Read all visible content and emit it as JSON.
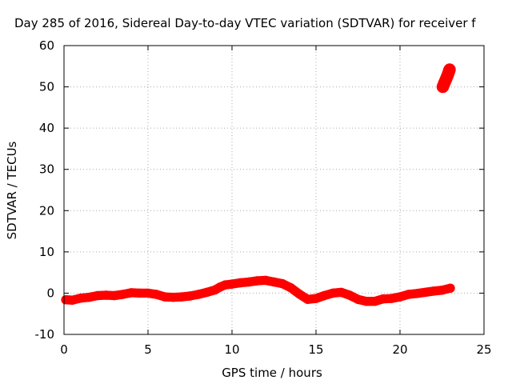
{
  "chart_data": {
    "type": "scatter",
    "title": "Day 285 of 2016, Sidereal Day-to-day VTEC variation (SDTVAR) for receiver f",
    "xlabel": "GPS time / hours",
    "ylabel": "SDTVAR / TECUs",
    "xlim": [
      0,
      25
    ],
    "ylim": [
      -10,
      60
    ],
    "xticks": [
      0,
      5,
      10,
      15,
      20,
      25
    ],
    "yticks": [
      -10,
      0,
      10,
      20,
      30,
      40,
      50,
      60
    ],
    "grid": true,
    "series": [
      {
        "color": "#ff0000",
        "points": [
          [
            0.1,
            -1.6
          ],
          [
            0.5,
            -1.7
          ],
          [
            1.0,
            -1.2
          ],
          [
            1.5,
            -1.0
          ],
          [
            2.0,
            -0.6
          ],
          [
            2.5,
            -0.5
          ],
          [
            3.0,
            -0.6
          ],
          [
            3.5,
            -0.3
          ],
          [
            4.0,
            0.1
          ],
          [
            4.5,
            0.0
          ],
          [
            5.0,
            0.0
          ],
          [
            5.5,
            -0.3
          ],
          [
            6.0,
            -0.9
          ],
          [
            6.5,
            -1.0
          ],
          [
            7.0,
            -0.9
          ],
          [
            7.5,
            -0.7
          ],
          [
            8.0,
            -0.3
          ],
          [
            8.5,
            0.2
          ],
          [
            9.0,
            0.8
          ],
          [
            9.3,
            1.5
          ],
          [
            9.6,
            2.0
          ],
          [
            10.0,
            2.2
          ],
          [
            10.5,
            2.5
          ],
          [
            11.0,
            2.7
          ],
          [
            11.5,
            3.0
          ],
          [
            12.0,
            3.1
          ],
          [
            12.5,
            2.7
          ],
          [
            13.0,
            2.3
          ],
          [
            13.5,
            1.3
          ],
          [
            14.0,
            -0.2
          ],
          [
            14.5,
            -1.5
          ],
          [
            15.0,
            -1.3
          ],
          [
            15.5,
            -0.6
          ],
          [
            16.0,
            0.0
          ],
          [
            16.5,
            0.2
          ],
          [
            17.0,
            -0.5
          ],
          [
            17.5,
            -1.5
          ],
          [
            18.0,
            -2.0
          ],
          [
            18.5,
            -2.0
          ],
          [
            19.0,
            -1.4
          ],
          [
            19.5,
            -1.3
          ],
          [
            20.0,
            -0.9
          ],
          [
            20.5,
            -0.3
          ],
          [
            21.0,
            -0.1
          ],
          [
            21.5,
            0.2
          ],
          [
            22.0,
            0.5
          ],
          [
            22.5,
            0.7
          ],
          [
            23.0,
            1.2
          ]
        ],
        "band": 2.2
      },
      {
        "color": "#ff0000",
        "points": [
          [
            22.55,
            50.0
          ],
          [
            22.65,
            51.0
          ],
          [
            22.75,
            52.0
          ],
          [
            22.85,
            53.0
          ],
          [
            22.95,
            54.2
          ]
        ],
        "band": 3.0
      }
    ]
  }
}
